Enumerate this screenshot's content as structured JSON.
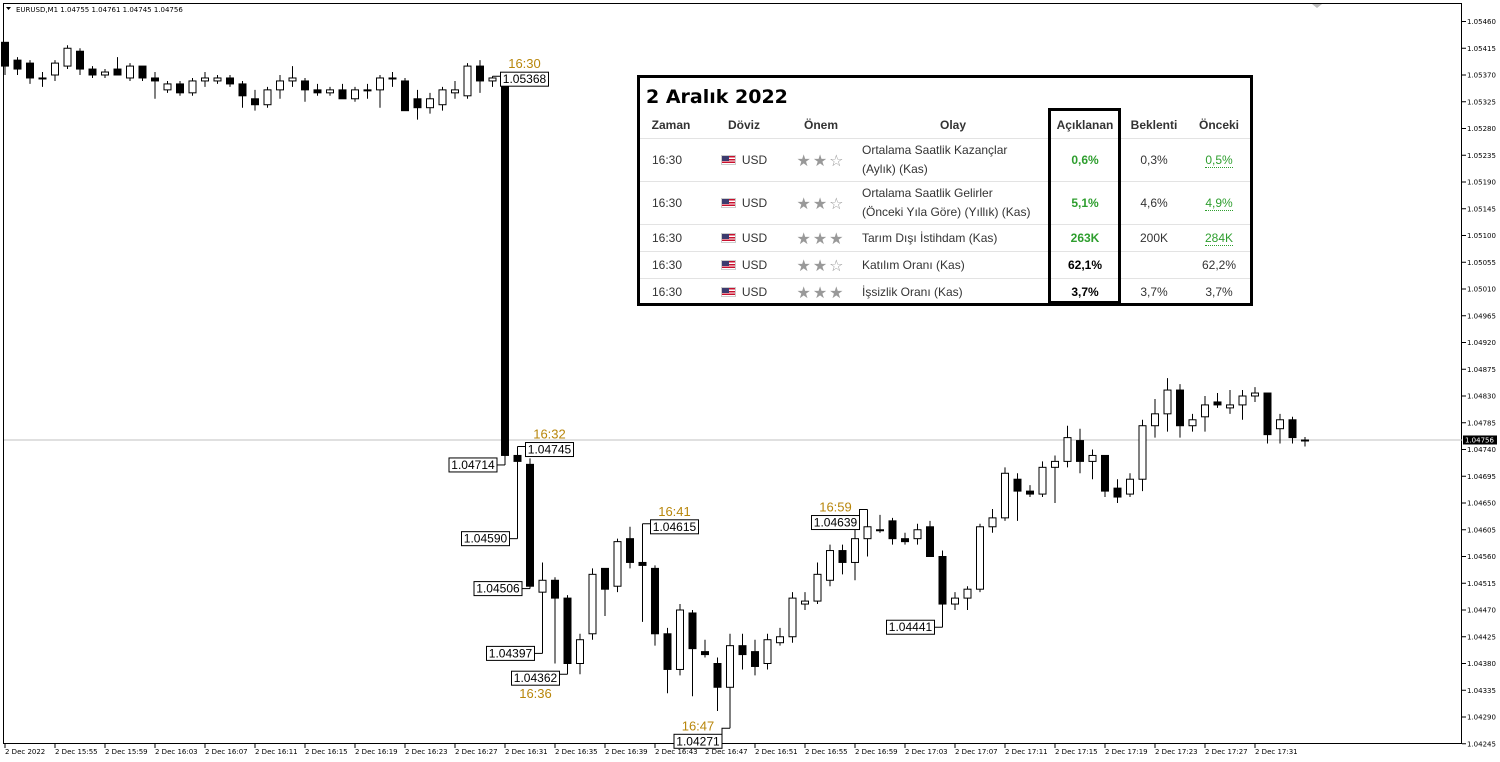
{
  "symbol_header": "EURUSD,M1  1.04755 1.04761 1.04745 1.04756",
  "current_price_label": "1.04756",
  "chart_data": {
    "type": "candlestick",
    "symbol": "EURUSD,M1",
    "ylim": [
      1.04236,
      1.0548
    ],
    "y_ticks": [
      "1.05460",
      "1.05415",
      "1.05370",
      "1.05325",
      "1.05280",
      "1.05235",
      "1.05190",
      "1.05145",
      "1.05100",
      "1.05055",
      "1.05010",
      "1.04965",
      "1.04920",
      "1.04875",
      "1.04830",
      "1.04785",
      "1.04740",
      "1.04695",
      "1.04650",
      "1.04605",
      "1.04560",
      "1.04515",
      "1.04470",
      "1.04425",
      "1.04380",
      "1.04335",
      "1.04290",
      "1.04245"
    ],
    "x_ticks": [
      "2 Dec 2022",
      "2 Dec 15:55",
      "2 Dec 15:59",
      "2 Dec 16:03",
      "2 Dec 16:07",
      "2 Dec 16:11",
      "2 Dec 16:15",
      "2 Dec 16:19",
      "2 Dec 16:23",
      "2 Dec 16:27",
      "2 Dec 16:31",
      "2 Dec 16:35",
      "2 Dec 16:39",
      "2 Dec 16:43",
      "2 Dec 16:47",
      "2 Dec 16:51",
      "2 Dec 16:55",
      "2 Dec 16:59",
      "2 Dec 17:03",
      "2 Dec 17:07",
      "2 Dec 17:11",
      "2 Dec 17:15",
      "2 Dec 17:19",
      "2 Dec 17:23",
      "2 Dec 17:27",
      "2 Dec 17:31"
    ],
    "candles": [
      [
        1.05425,
        1.05425,
        1.0537,
        1.05385
      ],
      [
        1.05395,
        1.054,
        1.0537,
        1.0538
      ],
      [
        1.0539,
        1.05395,
        1.05355,
        1.05365
      ],
      [
        1.05365,
        1.05375,
        1.0535,
        1.05365
      ],
      [
        1.0537,
        1.05395,
        1.0536,
        1.0539
      ],
      [
        1.05385,
        1.0542,
        1.0538,
        1.05415
      ],
      [
        1.0541,
        1.05415,
        1.0537,
        1.0538
      ],
      [
        1.0538,
        1.05385,
        1.05365,
        1.0537
      ],
      [
        1.0537,
        1.0538,
        1.05365,
        1.05375
      ],
      [
        1.0538,
        1.054,
        1.0537,
        1.0537
      ],
      [
        1.05365,
        1.0539,
        1.0536,
        1.05385
      ],
      [
        1.05385,
        1.05385,
        1.0536,
        1.05365
      ],
      [
        1.05365,
        1.05375,
        1.0533,
        1.0536
      ],
      [
        1.05345,
        1.0536,
        1.0534,
        1.05355
      ],
      [
        1.05355,
        1.0536,
        1.05335,
        1.0534
      ],
      [
        1.0534,
        1.05365,
        1.05335,
        1.0536
      ],
      [
        1.0536,
        1.05375,
        1.0535,
        1.05365
      ],
      [
        1.0536,
        1.0537,
        1.05355,
        1.05365
      ],
      [
        1.05365,
        1.0537,
        1.0535,
        1.05355
      ],
      [
        1.05355,
        1.0536,
        1.05315,
        1.05335
      ],
      [
        1.0533,
        1.05345,
        1.0531,
        1.0532
      ],
      [
        1.0532,
        1.0535,
        1.05315,
        1.05345
      ],
      [
        1.05345,
        1.0537,
        1.0533,
        1.0536
      ],
      [
        1.0536,
        1.05385,
        1.0535,
        1.05365
      ],
      [
        1.0536,
        1.05365,
        1.05325,
        1.05345
      ],
      [
        1.05345,
        1.05355,
        1.05335,
        1.0534
      ],
      [
        1.0534,
        1.0535,
        1.05335,
        1.05345
      ],
      [
        1.05345,
        1.05355,
        1.0533,
        1.0533
      ],
      [
        1.0533,
        1.0535,
        1.05325,
        1.05345
      ],
      [
        1.05345,
        1.05355,
        1.0533,
        1.05345
      ],
      [
        1.05345,
        1.0537,
        1.05315,
        1.05365
      ],
      [
        1.05365,
        1.05375,
        1.0535,
        1.05365
      ],
      [
        1.0536,
        1.05365,
        1.0531,
        1.0531
      ],
      [
        1.0533,
        1.05345,
        1.05295,
        1.05315
      ],
      [
        1.05315,
        1.0534,
        1.05305,
        1.0533
      ],
      [
        1.0532,
        1.0535,
        1.0531,
        1.05345
      ],
      [
        1.0534,
        1.0536,
        1.0533,
        1.05345
      ],
      [
        1.05335,
        1.0539,
        1.0533,
        1.05385
      ],
      [
        1.05385,
        1.05395,
        1.0534,
        1.0536
      ],
      [
        1.0536,
        1.05368,
        1.0535,
        1.05365
      ],
      [
        1.0536,
        1.05368,
        1.04714,
        1.0473
      ],
      [
        1.0473,
        1.04745,
        1.0459,
        1.0472
      ],
      [
        1.04715,
        1.04725,
        1.04506,
        1.0451
      ],
      [
        1.045,
        1.0455,
        1.04397,
        1.0452
      ],
      [
        1.0452,
        1.04525,
        1.0438,
        1.0449
      ],
      [
        1.0449,
        1.04495,
        1.04362,
        1.0438
      ],
      [
        1.0438,
        1.0443,
        1.04362,
        1.0442
      ],
      [
        1.0443,
        1.0454,
        1.0442,
        1.0453
      ],
      [
        1.0454,
        1.0454,
        1.0446,
        1.04505
      ],
      [
        1.0451,
        1.0459,
        1.045,
        1.04585
      ],
      [
        1.0459,
        1.0461,
        1.0454,
        1.0455
      ],
      [
        1.0455,
        1.04615,
        1.0445,
        1.04545
      ],
      [
        1.0454,
        1.04545,
        1.0441,
        1.0443
      ],
      [
        1.0443,
        1.0444,
        1.0433,
        1.0437
      ],
      [
        1.0437,
        1.0448,
        1.0436,
        1.0447
      ],
      [
        1.04465,
        1.0447,
        1.04325,
        1.04405
      ],
      [
        1.044,
        1.0442,
        1.0439,
        1.04395
      ],
      [
        1.0438,
        1.0439,
        1.043,
        1.0434
      ],
      [
        1.0434,
        1.0443,
        1.04271,
        1.0441
      ],
      [
        1.0441,
        1.0443,
        1.0437,
        1.04395
      ],
      [
        1.044,
        1.0442,
        1.0436,
        1.04375
      ],
      [
        1.0438,
        1.0443,
        1.0437,
        1.0442
      ],
      [
        1.04415,
        1.0444,
        1.0441,
        1.04425
      ],
      [
        1.04425,
        1.045,
        1.04415,
        1.0449
      ],
      [
        1.0448,
        1.045,
        1.0447,
        1.04485
      ],
      [
        1.04485,
        1.0455,
        1.0448,
        1.0453
      ],
      [
        1.0452,
        1.0458,
        1.0451,
        1.0457
      ],
      [
        1.0457,
        1.0458,
        1.0453,
        1.0455
      ],
      [
        1.0455,
        1.0462,
        1.0452,
        1.0459
      ],
      [
        1.0459,
        1.04639,
        1.0456,
        1.0461
      ],
      [
        1.04605,
        1.0463,
        1.046,
        1.04605
      ],
      [
        1.0462,
        1.04625,
        1.0458,
        1.0459
      ],
      [
        1.0459,
        1.046,
        1.0458,
        1.04585
      ],
      [
        1.0459,
        1.04615,
        1.0458,
        1.04605
      ],
      [
        1.0461,
        1.0462,
        1.0456,
        1.0456
      ],
      [
        1.0456,
        1.0457,
        1.04441,
        1.0448
      ],
      [
        1.0448,
        1.045,
        1.0447,
        1.0449
      ],
      [
        1.0449,
        1.0451,
        1.0447,
        1.04505
      ],
      [
        1.04505,
        1.04615,
        1.045,
        1.0461
      ],
      [
        1.0461,
        1.0464,
        1.046,
        1.04625
      ],
      [
        1.04625,
        1.0471,
        1.0462,
        1.047
      ],
      [
        1.0469,
        1.047,
        1.0462,
        1.0467
      ],
      [
        1.0467,
        1.0468,
        1.0466,
        1.04665
      ],
      [
        1.04665,
        1.0472,
        1.0466,
        1.0471
      ],
      [
        1.0471,
        1.0473,
        1.0465,
        1.0472
      ],
      [
        1.0472,
        1.0478,
        1.0471,
        1.0476
      ],
      [
        1.04755,
        1.04775,
        1.047,
        1.0472
      ],
      [
        1.0472,
        1.0474,
        1.0469,
        1.0473
      ],
      [
        1.0473,
        1.0473,
        1.0466,
        1.0467
      ],
      [
        1.04675,
        1.0469,
        1.0465,
        1.0466
      ],
      [
        1.04665,
        1.047,
        1.0466,
        1.0469
      ],
      [
        1.0469,
        1.0479,
        1.0467,
        1.0478
      ],
      [
        1.0478,
        1.04825,
        1.0476,
        1.048
      ],
      [
        1.048,
        1.0486,
        1.0477,
        1.0484
      ],
      [
        1.0484,
        1.0485,
        1.0476,
        1.0478
      ],
      [
        1.0478,
        1.048,
        1.0477,
        1.0479
      ],
      [
        1.04795,
        1.0483,
        1.0477,
        1.04815
      ],
      [
        1.0482,
        1.04835,
        1.0481,
        1.04815
      ],
      [
        1.0481,
        1.0484,
        1.048,
        1.04815
      ],
      [
        1.04815,
        1.0484,
        1.0479,
        1.0483
      ],
      [
        1.0483,
        1.04845,
        1.0482,
        1.04835
      ],
      [
        1.04835,
        1.04835,
        1.0475,
        1.04765
      ],
      [
        1.04775,
        1.048,
        1.0475,
        1.0479
      ],
      [
        1.0479,
        1.04795,
        1.0475,
        1.0476
      ],
      [
        1.04756,
        1.04761,
        1.04745,
        1.04756
      ]
    ],
    "annotations": [
      {
        "time": "16:30",
        "price": "1.05368",
        "candle": 39,
        "pos": "right-above"
      },
      {
        "price": "1.04714",
        "candle": 40,
        "pos": "left"
      },
      {
        "time": "16:32",
        "price": "1.04745",
        "candle": 41,
        "pos": "right-above"
      },
      {
        "price": "1.04590",
        "candle": 41,
        "pos": "left"
      },
      {
        "price": "1.04506",
        "candle": 42,
        "pos": "left"
      },
      {
        "price": "1.04397",
        "candle": 43,
        "pos": "left"
      },
      {
        "time": "16:36",
        "price": "1.04362",
        "candle": 45,
        "pos": "left-below"
      },
      {
        "time": "16:41",
        "price": "1.04615",
        "candle": 51,
        "pos": "right-above"
      },
      {
        "time": "16:47",
        "price": "1.04271",
        "candle": 58,
        "pos": "left-above"
      },
      {
        "time": "16:59",
        "price": "1.04639",
        "candle": 69,
        "pos": "left-above"
      },
      {
        "price": "1.04441",
        "candle": 75,
        "pos": "left"
      }
    ]
  },
  "calendar": {
    "title": "2 Aralık 2022",
    "headers": {
      "time": "Zaman",
      "currency": "Döviz",
      "importance": "Önem",
      "event": "Olay",
      "actual": "Açıklanan",
      "forecast": "Beklenti",
      "previous": "Önceki"
    },
    "rows": [
      {
        "time": "16:30",
        "currency": "USD",
        "stars": "★★☆",
        "event_line1": "Ortalama Saatlik Kazançlar",
        "event_line2": "(Aylık) (Kas)",
        "actual": "0,6%",
        "forecast": "0,3%",
        "previous": "0,5%"
      },
      {
        "time": "16:30",
        "currency": "USD",
        "stars": "★★☆",
        "event_line1": "Ortalama Saatlik Gelirler",
        "event_line2": "(Önceki Yıla Göre) (Yıllık) (Kas)",
        "actual": "5,1%",
        "forecast": "4,6%",
        "previous": "4,9%"
      },
      {
        "time": "16:30",
        "currency": "USD",
        "stars": "★★★",
        "event_line1": "Tarım Dışı İstihdam (Kas)",
        "event_line2": "",
        "actual": "263K",
        "forecast": "200K",
        "previous": "284K"
      },
      {
        "time": "16:30",
        "currency": "USD",
        "stars": "★★☆",
        "event_line1": "Katılım Oranı (Kas)",
        "event_line2": "",
        "actual": "62,1%",
        "forecast": "",
        "previous": "62,2%"
      },
      {
        "time": "16:30",
        "currency": "USD",
        "stars": "★★★",
        "event_line1": "İşsizlik Oranı (Kas)",
        "event_line2": "",
        "actual": "3,7%",
        "forecast": "3,7%",
        "previous": "3,7%"
      }
    ]
  }
}
